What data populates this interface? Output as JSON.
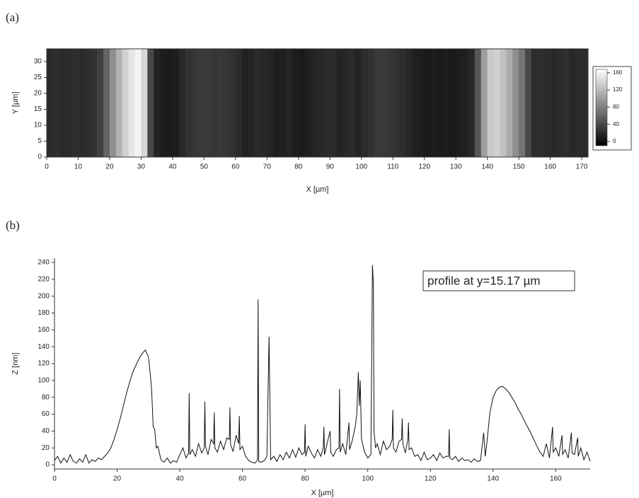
{
  "chart_data": [
    {
      "type": "heatmap",
      "panel": "(a)",
      "xlabel": "X [µm]",
      "ylabel": "Y [µm]",
      "x": [
        1,
        3,
        5,
        7,
        9,
        11,
        13,
        15,
        17,
        19,
        21,
        23,
        25,
        27,
        29,
        31,
        33,
        35,
        37,
        39,
        41,
        43,
        45,
        47,
        49,
        51,
        53,
        55,
        57,
        59,
        61,
        63,
        65,
        67,
        69,
        71,
        73,
        75,
        77,
        79,
        81,
        83,
        85,
        87,
        89,
        91,
        93,
        95,
        97,
        99,
        101,
        103,
        105,
        107,
        109,
        111,
        113,
        115,
        117,
        119,
        121,
        123,
        125,
        127,
        129,
        131,
        133,
        135,
        137,
        139,
        141,
        143,
        145,
        147,
        149,
        151,
        153,
        155,
        157,
        159,
        161,
        163,
        165,
        167,
        169,
        171
      ],
      "values": [
        20,
        22,
        18,
        20,
        22,
        20,
        22,
        25,
        35,
        60,
        90,
        115,
        135,
        150,
        160,
        140,
        40,
        15,
        10,
        8,
        10,
        18,
        25,
        28,
        30,
        30,
        28,
        30,
        28,
        25,
        20,
        12,
        15,
        20,
        18,
        15,
        10,
        12,
        15,
        10,
        8,
        12,
        15,
        18,
        20,
        20,
        15,
        18,
        20,
        15,
        20,
        25,
        30,
        30,
        28,
        25,
        22,
        18,
        12,
        10,
        8,
        10,
        8,
        10,
        8,
        10,
        12,
        18,
        50,
        100,
        130,
        135,
        125,
        110,
        90,
        70,
        40,
        20,
        22,
        20,
        18,
        20,
        22,
        18,
        20,
        20
      ],
      "xlim": [
        0,
        172
      ],
      "ylim": [
        0,
        34
      ],
      "xticks": [
        0,
        10,
        20,
        30,
        40,
        50,
        60,
        70,
        80,
        90,
        100,
        110,
        120,
        130,
        140,
        150,
        160,
        170
      ],
      "yticks": [
        0,
        5,
        10,
        15,
        20,
        25,
        30
      ],
      "clim": [
        -10,
        168
      ],
      "colorbar_ticks": [
        0,
        40,
        80,
        120,
        160
      ]
    },
    {
      "type": "line",
      "panel": "(b)",
      "xlabel": "X [µm]",
      "ylabel": "Z [nm]",
      "annotation": "profile at y=15.17 µm",
      "color": "#111111",
      "x": [
        0,
        1,
        2,
        3,
        4,
        5,
        6,
        7,
        8,
        9,
        10,
        11,
        12,
        13,
        14,
        15,
        16,
        17,
        18,
        19,
        20,
        21,
        22,
        23,
        24,
        25,
        26,
        27,
        28,
        29,
        30,
        30.5,
        31,
        31.5,
        32,
        32.5,
        33,
        34,
        35,
        36,
        37,
        38,
        39,
        40,
        41,
        42,
        42.8,
        43,
        43.2,
        44,
        45,
        46,
        47,
        47.8,
        48,
        48.2,
        49,
        50,
        50.8,
        51,
        51.2,
        52,
        53,
        54,
        55,
        55.8,
        56,
        56.2,
        57,
        58,
        58.8,
        59,
        59.2,
        60,
        61,
        62,
        63,
        64,
        64.8,
        65,
        65.2,
        66,
        67,
        67.8,
        68.5,
        69,
        70,
        71,
        72,
        73,
        74,
        75,
        76,
        77,
        78,
        79,
        79.8,
        80,
        80.2,
        81,
        82,
        83,
        84,
        85,
        85.8,
        86,
        86.2,
        87,
        88,
        88.2,
        89,
        90,
        90.8,
        91,
        91.2,
        92,
        93,
        94,
        94.2,
        95,
        96,
        96.5,
        97,
        97.3,
        97.6,
        98,
        99,
        100,
        101,
        101.5,
        101.8,
        102,
        102.5,
        103,
        104,
        105,
        106,
        107,
        107.8,
        108,
        108.2,
        109,
        110,
        110.8,
        111,
        111.2,
        112,
        112.8,
        113,
        113.2,
        114,
        115,
        116,
        117,
        118,
        119,
        120,
        121,
        122,
        123,
        124,
        125,
        125.8,
        126,
        126.2,
        127,
        128,
        129,
        130,
        131,
        132,
        133,
        134,
        135,
        136,
        137,
        137.5,
        138,
        139,
        140,
        141,
        142,
        143,
        144,
        145,
        146,
        147,
        148,
        149,
        150,
        151,
        152,
        153,
        154,
        155,
        156,
        157,
        158,
        159,
        159.2,
        160,
        161,
        162,
        162.2,
        163,
        164,
        165,
        165.2,
        166,
        167,
        167.2,
        168,
        169,
        170,
        171
      ],
      "values": [
        5,
        10,
        2,
        8,
        3,
        12,
        4,
        2,
        7,
        3,
        12,
        2,
        6,
        4,
        8,
        6,
        10,
        14,
        20,
        30,
        42,
        55,
        70,
        85,
        98,
        110,
        118,
        126,
        132,
        136,
        128,
        110,
        90,
        45,
        42,
        20,
        22,
        6,
        3,
        8,
        2,
        5,
        3,
        12,
        20,
        8,
        14,
        85,
        12,
        18,
        10,
        25,
        14,
        20,
        75,
        22,
        12,
        30,
        25,
        62,
        20,
        15,
        28,
        18,
        32,
        30,
        68,
        24,
        16,
        35,
        25,
        58,
        18,
        22,
        10,
        5,
        3,
        2,
        6,
        196,
        4,
        3,
        5,
        10,
        152,
        6,
        10,
        4,
        12,
        6,
        15,
        8,
        18,
        9,
        20,
        12,
        15,
        48,
        10,
        22,
        14,
        8,
        18,
        10,
        20,
        45,
        12,
        25,
        40,
        15,
        10,
        18,
        20,
        90,
        15,
        25,
        12,
        50,
        18,
        28,
        45,
        60,
        110,
        70,
        100,
        30,
        15,
        8,
        12,
        237,
        215,
        40,
        20,
        25,
        12,
        28,
        18,
        22,
        30,
        65,
        20,
        15,
        28,
        30,
        55,
        25,
        14,
        30,
        50,
        18,
        20,
        10,
        12,
        5,
        15,
        6,
        8,
        12,
        5,
        14,
        8,
        10,
        10,
        42,
        8,
        6,
        10,
        4,
        8,
        5,
        6,
        3,
        7,
        4,
        5,
        38,
        10,
        25,
        62,
        80,
        88,
        92,
        93,
        90,
        86,
        80,
        74,
        66,
        60,
        52,
        45,
        38,
        30,
        22,
        15,
        10,
        25,
        8,
        45,
        15,
        20,
        10,
        35,
        12,
        18,
        8,
        38,
        14,
        12,
        32,
        10,
        20,
        6,
        15,
        4
      ],
      "xlim": [
        0,
        171
      ],
      "ylim": [
        -5,
        245
      ],
      "xticks": [
        0,
        20,
        40,
        60,
        80,
        100,
        120,
        140,
        160
      ],
      "yticks": [
        0,
        20,
        40,
        60,
        80,
        100,
        120,
        140,
        160,
        180,
        200,
        220,
        240
      ]
    }
  ]
}
